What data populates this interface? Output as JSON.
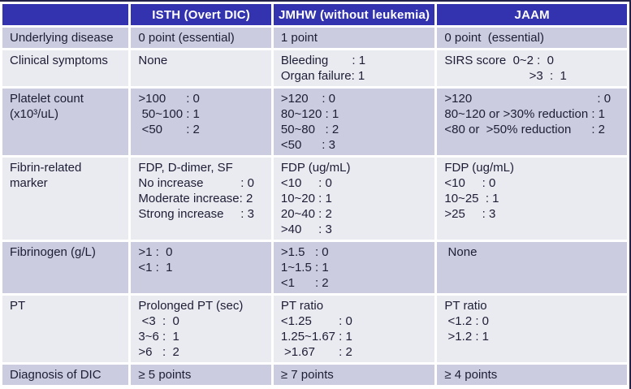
{
  "colors": {
    "header_bg": "#3333b0",
    "header_fg": "#ffffff",
    "row_alt": "#cbcce0",
    "row_base": "#eaeaf1",
    "text": "#1d1d35",
    "frame": "#23234a"
  },
  "table": {
    "columns": [
      "",
      "ISTH  (Overt DIC)",
      "JMHW (without leukemia)",
      "JAAM"
    ],
    "column_keys": [
      "isth",
      "jmhw",
      "jaam"
    ],
    "rows": [
      {
        "label": "Underlying disease",
        "cells": [
          "0 point (essential)",
          "1 point",
          "0 point  (essential)"
        ]
      },
      {
        "label": "Clinical symptoms",
        "cells": [
          "None",
          "Bleeding       : 1\nOrgan failure: 1",
          "SIRS score  0~2 :  0\n                         >3  :  1"
        ]
      },
      {
        "label": "Platelet count\n(x10³/uL)",
        "cells": [
          ">100      : 0\n 50~100 : 1\n <50       : 2",
          ">120    : 0\n80~120 : 1\n50~80   : 2\n<50      : 3",
          ">120                                     : 0\n80~120 or >30% reduction : 1\n<80 or  >50% reduction      : 2"
        ]
      },
      {
        "label": "Fibrin-related\nmarker",
        "cells": [
          "FDP, D-dimer, SF\nNo increase           : 0\nModerate increase: 2\nStrong increase     : 3",
          "FDP (ug/mL)\n<10     : 0\n10~20 : 1\n20~40 : 2\n>40     : 3",
          "FDP (ug/mL)\n<10     : 0\n10~25  : 1\n>25     : 3"
        ]
      },
      {
        "label": "Fibrinogen (g/L)",
        "cells": [
          ">1 :  0\n<1 :  1",
          ">1.5   : 0\n1~1.5 : 1\n<1      : 2",
          " None"
        ]
      },
      {
        "label": "PT",
        "cells": [
          "Prolonged PT (sec)\n <3  :  0\n3~6 :  1\n>6   :  2",
          "PT ratio\n<1.25        : 0\n1.25~1.67 : 1\n >1.67       : 2",
          "PT ratio\n <1.2 : 0\n >1.2 : 1"
        ]
      },
      {
        "label": "Diagnosis of DIC",
        "cells": [
          "≥ 5 points",
          "≥ 7 points",
          "≥ 4 points"
        ]
      }
    ]
  }
}
